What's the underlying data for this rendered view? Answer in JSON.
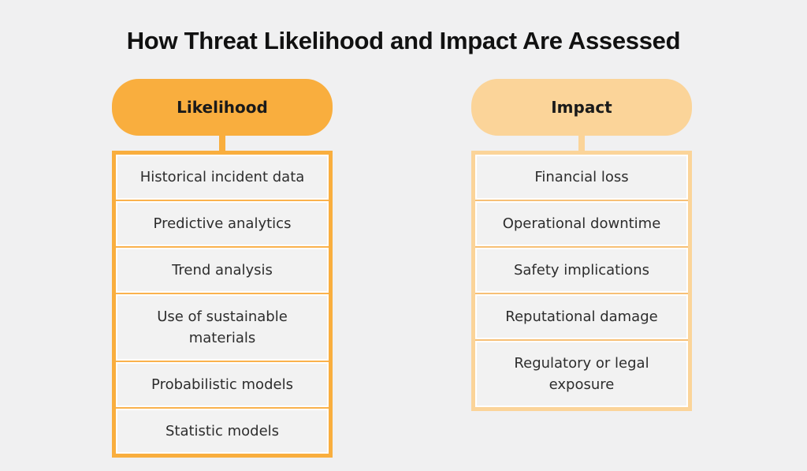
{
  "page": {
    "title": "How Threat Likelihood and Impact Are Assessed",
    "background": "#f0f0f1",
    "text_color": "#2d2d2d"
  },
  "columns": [
    {
      "id": "likelihood",
      "header": "Likelihood",
      "accent": "#f9ae3e",
      "divider": "#fab24d",
      "items": [
        "Historical incident data",
        "Predictive analytics",
        "Trend analysis",
        "Use of sustainable materials",
        "Probabilistic models",
        "Statistic models"
      ]
    },
    {
      "id": "impact",
      "header": "Impact",
      "accent": "#fbd499",
      "divider": "#f7c076",
      "items": [
        "Financial loss",
        "Operational downtime",
        "Safety implications",
        "Reputational damage",
        "Regulatory or legal exposure"
      ]
    }
  ]
}
